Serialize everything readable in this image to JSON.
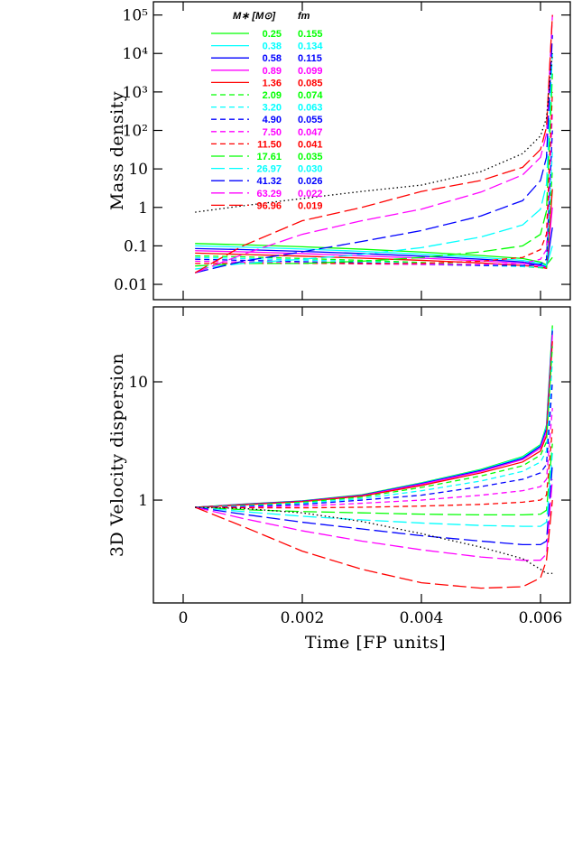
{
  "chart_data": [
    {
      "type": "line",
      "ylabel": "Mass density",
      "log_y": true,
      "legend_title": "M∗ [M⊙]",
      "legend_title2": "fm",
      "x": [
        0.0002,
        0.001,
        0.002,
        0.003,
        0.004,
        0.005,
        0.0057,
        0.006,
        0.0061,
        0.0062
      ],
      "xlim": [
        -0.0005,
        0.0065
      ],
      "xticks": [
        0,
        0.002,
        0.004,
        0.006
      ],
      "ylim": [
        0.004,
        220000
      ],
      "yticks": [
        0.01,
        0.1,
        1,
        10,
        {
          "value": 100,
          "label": "10²"
        },
        {
          "value": 1000,
          "label": "10³"
        },
        {
          "value": 10000,
          "label": "10⁴"
        },
        {
          "value": 100000,
          "label": "10⁵"
        }
      ],
      "series": [
        {
          "name": "0.25",
          "f_m": "0.155",
          "color": "#00ff00",
          "dash": "solid",
          "values": [
            0.115,
            0.107,
            0.095,
            0.082,
            0.069,
            0.056,
            0.047,
            0.038,
            0.032,
            0.05
          ]
        },
        {
          "name": "0.38",
          "f_m": "0.134",
          "color": "#00ffff",
          "dash": "solid",
          "values": [
            0.1,
            0.093,
            0.083,
            0.072,
            0.061,
            0.05,
            0.042,
            0.035,
            0.03,
            0.1
          ]
        },
        {
          "name": "0.58",
          "f_m": "0.115",
          "color": "#0000ff",
          "dash": "solid",
          "values": [
            0.085,
            0.08,
            0.072,
            0.063,
            0.054,
            0.045,
            0.038,
            0.032,
            0.028,
            0.3
          ]
        },
        {
          "name": "0.89",
          "f_m": "0.099",
          "color": "#ff00ff",
          "dash": "solid",
          "values": [
            0.075,
            0.07,
            0.063,
            0.055,
            0.048,
            0.041,
            0.035,
            0.03,
            0.027,
            1
          ]
        },
        {
          "name": "1.36",
          "f_m": "0.085",
          "color": "#ff0000",
          "dash": "solid",
          "values": [
            0.065,
            0.06,
            0.054,
            0.048,
            0.042,
            0.036,
            0.031,
            0.028,
            0.026,
            3
          ]
        },
        {
          "name": "2.09",
          "f_m": "0.074",
          "color": "#00ff00",
          "dash": "short",
          "values": [
            0.055,
            0.052,
            0.047,
            0.042,
            0.037,
            0.032,
            0.029,
            0.027,
            0.026,
            10
          ]
        },
        {
          "name": "3.20",
          "f_m": "0.063",
          "color": "#00ffff",
          "dash": "short",
          "values": [
            0.05,
            0.047,
            0.043,
            0.039,
            0.035,
            0.031,
            0.029,
            0.028,
            0.03,
            30
          ]
        },
        {
          "name": "4.90",
          "f_m": "0.055",
          "color": "#0000ff",
          "dash": "short",
          "values": [
            0.045,
            0.042,
            0.039,
            0.036,
            0.033,
            0.031,
            0.031,
            0.033,
            0.045,
            100
          ]
        },
        {
          "name": "7.50",
          "f_m": "0.047",
          "color": "#ff00ff",
          "dash": "short",
          "values": [
            0.04,
            0.038,
            0.036,
            0.034,
            0.033,
            0.033,
            0.035,
            0.045,
            0.08,
            300
          ]
        },
        {
          "name": "11.50",
          "f_m": "0.041",
          "color": "#ff0000",
          "dash": "short",
          "values": [
            0.035,
            0.035,
            0.035,
            0.035,
            0.035,
            0.04,
            0.05,
            0.08,
            0.2,
            1000
          ]
        },
        {
          "name": "17.61",
          "f_m": "0.035",
          "color": "#00ff00",
          "dash": "long",
          "values": [
            0.03,
            0.035,
            0.035,
            0.04,
            0.05,
            0.07,
            0.1,
            0.2,
            0.8,
            3000
          ]
        },
        {
          "name": "26.97",
          "f_m": "0.030",
          "color": "#00ffff",
          "dash": "long",
          "values": [
            0.025,
            0.035,
            0.045,
            0.06,
            0.09,
            0.17,
            0.35,
            0.9,
            4,
            10000
          ]
        },
        {
          "name": "41.32",
          "f_m": "0.026",
          "color": "#0000ff",
          "dash": "long",
          "values": [
            0.02,
            0.04,
            0.07,
            0.13,
            0.25,
            0.6,
            1.5,
            5,
            20,
            30000
          ]
        },
        {
          "name": "63.29",
          "f_m": "0.022",
          "color": "#ff00ff",
          "dash": "long",
          "values": [
            0.02,
            0.06,
            0.2,
            0.45,
            0.9,
            2.5,
            7,
            20,
            80,
            100000
          ]
        },
        {
          "name": "96.96",
          "f_m": "0.019",
          "color": "#ff0000",
          "dash": "long",
          "values": [
            0.02,
            0.1,
            0.45,
            1,
            2.6,
            5,
            11,
            32,
            120,
            100000
          ]
        },
        {
          "color": "#000000",
          "dash": "dotted",
          "values": [
            0.75,
            1.1,
            1.7,
            2.6,
            3.8,
            8.5,
            25,
            72,
            210,
            10000
          ]
        }
      ]
    },
    {
      "type": "line",
      "ylabel": "3D Velocity dispersion",
      "xlabel": "Time [FP units]",
      "log_y": true,
      "x": [
        0.0002,
        0.001,
        0.002,
        0.003,
        0.004,
        0.005,
        0.0057,
        0.006,
        0.0061,
        0.0062
      ],
      "xlim": [
        -0.0005,
        0.0065
      ],
      "xticks": [
        0,
        0.002,
        0.004,
        0.006
      ],
      "ylim": [
        0.135,
        43
      ],
      "yticks": [
        1,
        10
      ],
      "series": [
        {
          "color": "#00ff00",
          "dash": "solid",
          "values": [
            0.87,
            0.925,
            0.985,
            1.11,
            1.4,
            1.82,
            2.33,
            2.95,
            4.3,
            30
          ]
        },
        {
          "color": "#00ffff",
          "dash": "solid",
          "values": [
            0.87,
            0.92,
            0.98,
            1.1,
            1.39,
            1.8,
            2.3,
            2.9,
            4.2,
            28
          ]
        },
        {
          "color": "#0000ff",
          "dash": "solid",
          "values": [
            0.87,
            0.92,
            0.98,
            1.1,
            1.38,
            1.78,
            2.25,
            2.85,
            4.0,
            27
          ]
        },
        {
          "color": "#ff00ff",
          "dash": "solid",
          "values": [
            0.87,
            0.915,
            0.975,
            1.09,
            1.36,
            1.75,
            2.2,
            2.75,
            3.8,
            25
          ]
        },
        {
          "color": "#ff0000",
          "dash": "solid",
          "values": [
            0.87,
            0.91,
            0.97,
            1.08,
            1.33,
            1.7,
            2.1,
            2.6,
            3.5,
            22
          ]
        },
        {
          "color": "#00ff00",
          "dash": "short",
          "values": [
            0.87,
            0.9,
            0.96,
            1.06,
            1.28,
            1.6,
            1.95,
            2.4,
            3.1,
            20
          ]
        },
        {
          "color": "#00ffff",
          "dash": "short",
          "values": [
            0.87,
            0.89,
            0.94,
            1.03,
            1.2,
            1.45,
            1.75,
            2.1,
            2.6,
            15
          ]
        },
        {
          "color": "#0000ff",
          "dash": "short",
          "values": [
            0.87,
            0.88,
            0.92,
            1.0,
            1.1,
            1.3,
            1.5,
            1.7,
            2.0,
            10
          ]
        },
        {
          "color": "#ff00ff",
          "dash": "short",
          "values": [
            0.87,
            0.87,
            0.89,
            0.94,
            1.0,
            1.1,
            1.2,
            1.3,
            1.5,
            6
          ]
        },
        {
          "color": "#ff0000",
          "dash": "short",
          "values": [
            0.87,
            0.86,
            0.86,
            0.87,
            0.89,
            0.92,
            0.96,
            1.0,
            1.1,
            4
          ]
        },
        {
          "color": "#00ff00",
          "dash": "long",
          "values": [
            0.87,
            0.83,
            0.8,
            0.78,
            0.76,
            0.75,
            0.75,
            0.76,
            0.82,
            3
          ]
        },
        {
          "color": "#00ffff",
          "dash": "long",
          "values": [
            0.87,
            0.8,
            0.73,
            0.68,
            0.64,
            0.61,
            0.6,
            0.6,
            0.65,
            2.5
          ]
        },
        {
          "color": "#0000ff",
          "dash": "long",
          "values": [
            0.87,
            0.76,
            0.65,
            0.57,
            0.5,
            0.45,
            0.42,
            0.42,
            0.45,
            2
          ]
        },
        {
          "color": "#ff00ff",
          "dash": "long",
          "values": [
            0.87,
            0.7,
            0.55,
            0.45,
            0.38,
            0.33,
            0.31,
            0.31,
            0.35,
            1.5
          ]
        },
        {
          "color": "#ff0000",
          "dash": "long",
          "values": [
            0.87,
            0.6,
            0.37,
            0.26,
            0.2,
            0.18,
            0.185,
            0.22,
            0.31,
            1
          ]
        },
        {
          "color": "#000000",
          "dash": "dotted",
          "values": [
            0.87,
            0.85,
            0.78,
            0.66,
            0.52,
            0.4,
            0.32,
            0.26,
            0.24,
            0.24
          ]
        }
      ]
    }
  ]
}
